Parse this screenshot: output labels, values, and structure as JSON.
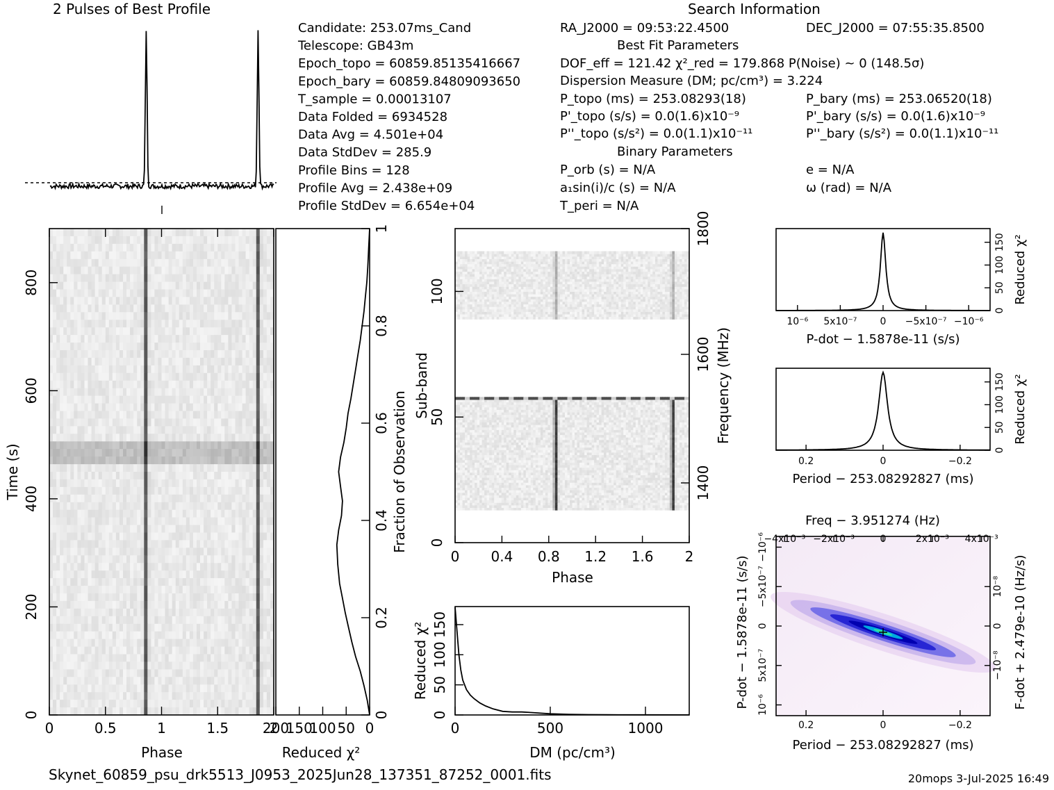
{
  "header": {
    "profile_title": "2 Pulses of Best Profile",
    "search_title": "Search Information",
    "best_fit_title": "Best Fit Parameters",
    "binary_title": "Binary Parameters"
  },
  "info_col1": [
    "Candidate:  253.07ms_Cand",
    "Telescope:  GB43m",
    "Epoch_topo = 60859.85135416667",
    "Epoch_bary = 60859.84809093650",
    "T_sample        =  0.00013107",
    "Data Folded     =  6934528",
    "Data Avg        =  4.501e+04",
    "Data StdDev     =  285.9",
    "Profile Bins    =  128",
    "Profile Avg     =  2.438e+09",
    "Profile StdDev  =  6.654e+04"
  ],
  "info_col2": {
    "ra": "RA_J2000 = 09:53:22.4500",
    "dof": "DOF_eff = 121.42  χ²_red = 179.868  P(Noise) ~ 0   (148.5σ)",
    "dm": "Dispersion Measure (DM; pc/cm³) = 3.224",
    "p_topo": "P_topo (ms) =  253.08293(18)",
    "pd_topo": "P'_topo (s/s) = 0.0(1.6)x10⁻⁹",
    "pdd_topo": "P''_topo (s/s²) = 0.0(1.1)x10⁻¹¹",
    "porb": "P_orb (s) = N/A",
    "a1": "a₁sin(i)/c (s) = N/A",
    "tperi": "T_peri = N/A"
  },
  "info_col3": {
    "dec": "DEC_J2000 = 07:55:35.8500",
    "p_bary": "P_bary (ms) =  253.06520(18)",
    "pd_bary": "P'_bary (s/s) = 0.0(1.6)x10⁻⁹",
    "pdd_bary": "P''_bary (s/s²) = 0.0(1.1)x10⁻¹¹",
    "ecc": "e = N/A",
    "omega": "ω (rad) = N/A"
  },
  "footer": {
    "filename": "Skynet_60859_psu_drk5513_J0953_2025Jun28_137351_87252_0001.fits",
    "stamp": "20mops  3-Jul-2025 16:49"
  },
  "chart_data": [
    {
      "type": "line",
      "name": "profile",
      "title": "2 Pulses of Best Profile",
      "x": "phase 0-2",
      "peaks_phase": [
        0.86,
        1.86
      ]
    },
    {
      "type": "heatmap",
      "name": "time-phase",
      "xlabel": "Phase",
      "ylabel": "Time (s)",
      "xlim": [
        0,
        2
      ],
      "ylim": [
        0,
        900
      ],
      "xticks": [
        "0",
        "0.5",
        "1",
        "1.5",
        "2"
      ],
      "yticks": [
        "0",
        "200",
        "400",
        "600",
        "800"
      ]
    },
    {
      "type": "line",
      "name": "time-chi2",
      "xlabel": "Reduced χ²",
      "ylabel": "Fraction of Observation",
      "xticks": [
        "200",
        "150",
        "100",
        "50",
        "0"
      ],
      "yticks": [
        "0",
        "0.2",
        "0.4",
        "0.6",
        "0.8",
        "1"
      ],
      "xlim": [
        200,
        0
      ],
      "x": [
        0,
        5,
        12,
        20,
        30,
        38,
        45,
        52,
        58,
        64,
        68,
        70,
        66,
        60,
        58,
        62,
        66,
        62,
        55,
        50,
        46,
        40,
        35,
        30,
        25,
        20,
        16,
        12,
        9,
        6,
        4,
        3,
        2,
        1,
        0
      ],
      "y": [
        0,
        0.03,
        0.06,
        0.09,
        0.12,
        0.15,
        0.18,
        0.21,
        0.24,
        0.27,
        0.31,
        0.35,
        0.38,
        0.41,
        0.44,
        0.47,
        0.5,
        0.53,
        0.56,
        0.59,
        0.62,
        0.65,
        0.68,
        0.71,
        0.74,
        0.77,
        0.8,
        0.83,
        0.86,
        0.89,
        0.92,
        0.94,
        0.96,
        0.98,
        1.0
      ]
    },
    {
      "type": "heatmap",
      "name": "subband-phase",
      "xlabel": "Phase",
      "ylabel": "Sub-band",
      "y2label": "Frequency (MHz)",
      "xticks": [
        "0",
        "0.4",
        "0.8",
        "1.2",
        "1.6",
        "2"
      ],
      "yticks": [
        "0",
        "50",
        "100"
      ],
      "y2ticks": [
        "1400",
        "1600",
        "1800"
      ]
    },
    {
      "type": "line",
      "name": "dm-chi2",
      "xlabel": "DM (pc/cm³)",
      "ylabel": "Reduced χ²",
      "xticks": [
        "0",
        "500",
        "1000"
      ],
      "yticks": [
        "0",
        "50",
        "100",
        "150"
      ],
      "xlim": [
        0,
        1230
      ],
      "ylim": [
        0,
        180
      ],
      "x": [
        0,
        10,
        20,
        30,
        40,
        60,
        80,
        100,
        130,
        160,
        200,
        250,
        300,
        350,
        400,
        500,
        600,
        700,
        800,
        1000,
        1230
      ],
      "y": [
        179,
        140,
        100,
        75,
        58,
        42,
        33,
        27,
        20,
        15,
        10,
        6,
        5,
        5,
        4,
        2,
        1,
        0.6,
        0.4,
        0.2,
        0.1
      ]
    },
    {
      "type": "line",
      "name": "pdot-chi2",
      "xlabel": "P-dot − 1.5878e-11 (s/s)",
      "ylabel": "Reduced χ²",
      "xticks": [
        "10⁻⁶",
        "5x10⁻⁷",
        "0",
        "−5x10⁻⁷",
        "−10⁻⁶"
      ],
      "yticks": [
        "0",
        "50",
        "100",
        "150"
      ]
    },
    {
      "type": "line",
      "name": "period-chi2",
      "xlabel": "Period − 253.08292827 (ms)",
      "ylabel": "Reduced χ²",
      "xticks": [
        "0.2",
        "0",
        "−0.2"
      ],
      "yticks": [
        "0",
        "50",
        "100",
        "150"
      ]
    },
    {
      "type": "heatmap",
      "name": "period-pdot",
      "title": "Freq − 3.951274 (Hz)",
      "xlabel": "Period − 253.08292827 (ms)",
      "ylabel": "P-dot − 1.5878e-11 (s/s)",
      "y2label": "F-dot + 2.479e-10 (Hz/s)",
      "xticks": [
        "0.2",
        "0",
        "−0.2"
      ],
      "x2ticks": [
        "−4x10⁻³",
        "−2x10⁻³",
        "0",
        "2x10⁻³",
        "4x10⁻³"
      ],
      "yticks": [
        "10⁻⁶",
        "5x10⁻⁷",
        "0",
        "−5x10⁻⁷",
        "−10⁻⁶"
      ],
      "y2ticks": [
        "−10⁻⁸",
        "0",
        "10⁻⁸"
      ]
    }
  ]
}
